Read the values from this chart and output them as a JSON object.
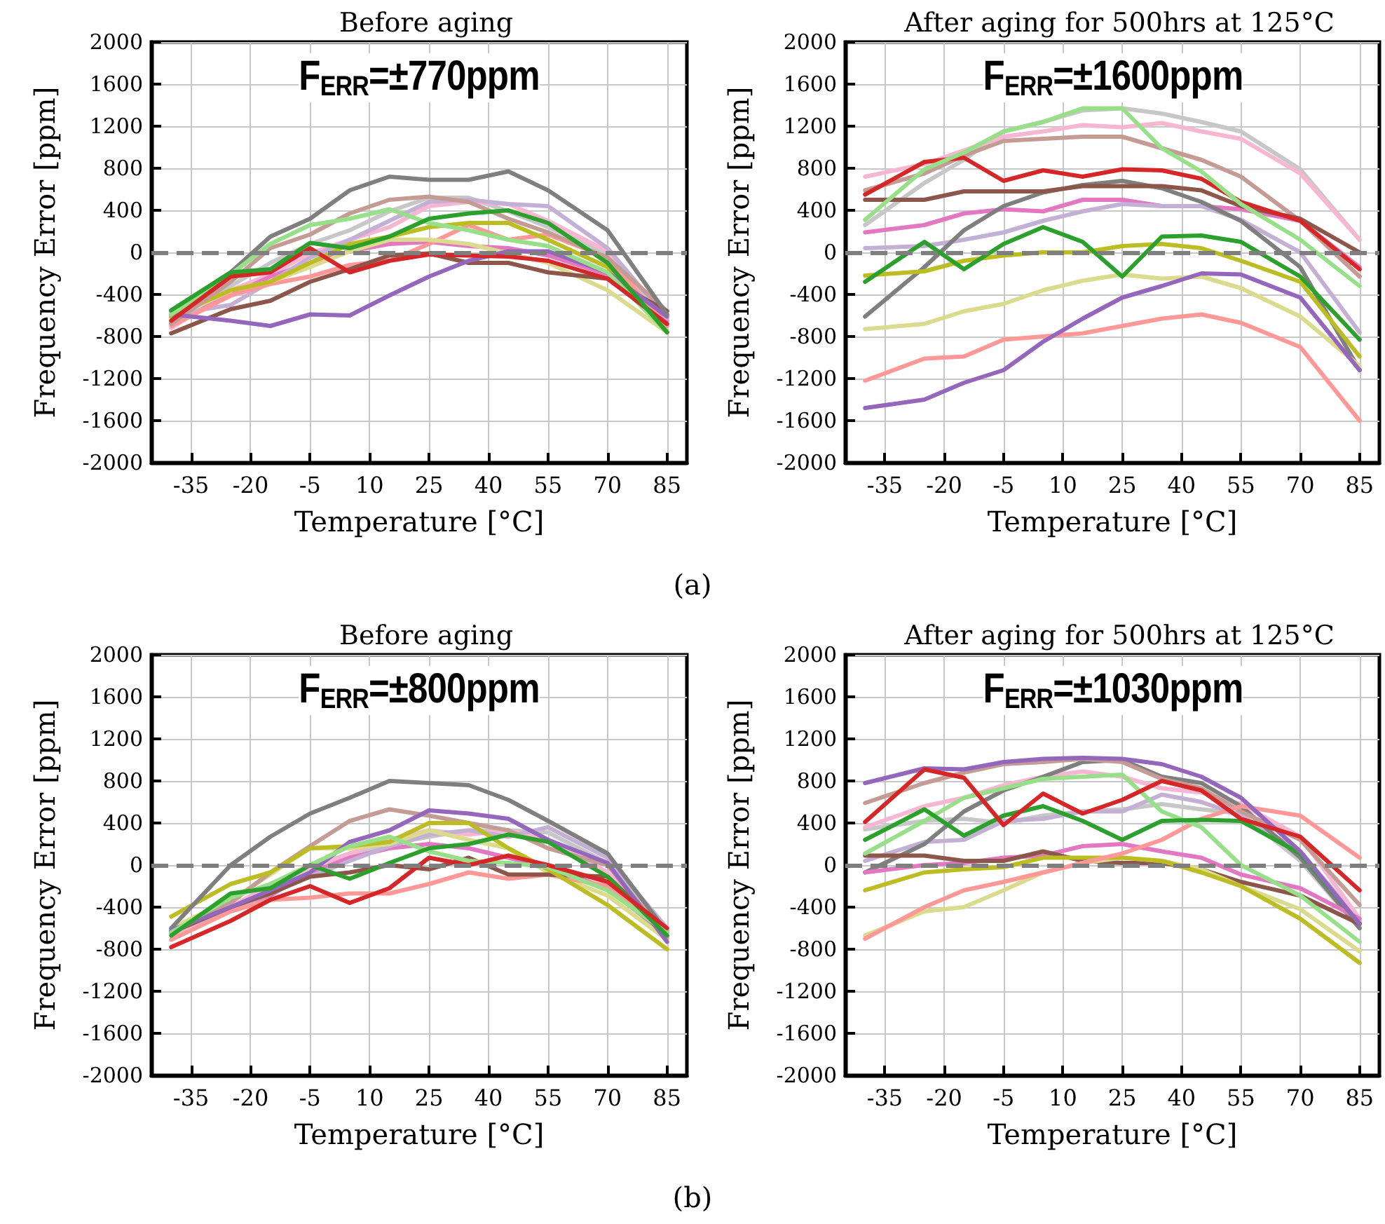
{
  "chart_data": [
    {
      "type": "line",
      "title": "Before aging",
      "xlabel": "Temperature [°C]",
      "ylabel": "Frequency Error [ppm]",
      "annotations": [
        "F$_{ERR}$=±770ppm",
        "(a)"
      ],
      "x": [
        -40,
        -25,
        -15,
        -5,
        5,
        15,
        25,
        35,
        45,
        55,
        70,
        85
      ],
      "xlim": [
        -45,
        90
      ],
      "xticks": [
        -35,
        -20,
        -5,
        10,
        25,
        40,
        55,
        70,
        85
      ],
      "ylim": [
        -2000,
        2000
      ],
      "yticks": [
        -2000,
        -1600,
        -1200,
        -800,
        -400,
        0,
        400,
        800,
        1200,
        1600,
        2000
      ],
      "grid": true,
      "marker": "none",
      "line_style": "solid",
      "ref_lines": [
        {
          "axis": "y",
          "value": 0,
          "color": "#7f7f7f",
          "line_style": "dashed"
        }
      ],
      "series": [
        {
          "color": "#c7c7c7",
          "values": [
            -610,
            -320,
            -100,
            80,
            210,
            390,
            520,
            520,
            390,
            240,
            -10,
            -680
          ]
        },
        {
          "color": "#f7b6d2",
          "values": [
            -720,
            -360,
            -210,
            -10,
            120,
            240,
            440,
            480,
            460,
            300,
            10,
            -760
          ]
        },
        {
          "color": "#e377c2",
          "values": [
            -680,
            -410,
            -230,
            -100,
            10,
            80,
            100,
            60,
            40,
            -30,
            -210,
            -650
          ]
        },
        {
          "color": "#c5b0d5",
          "values": [
            -590,
            -500,
            -280,
            -50,
            120,
            300,
            480,
            500,
            460,
            440,
            40,
            -630
          ]
        },
        {
          "color": "#ff9896",
          "values": [
            -700,
            -410,
            -300,
            -230,
            -120,
            -80,
            80,
            260,
            120,
            170,
            -50,
            -700
          ]
        },
        {
          "color": "#dbdb8d",
          "values": [
            -630,
            -360,
            -280,
            -140,
            10,
            120,
            120,
            80,
            -10,
            -100,
            -360,
            -760
          ]
        },
        {
          "color": "#bcbd22",
          "values": [
            -610,
            -360,
            -280,
            -100,
            80,
            150,
            240,
            280,
            280,
            120,
            -140,
            -760
          ]
        },
        {
          "color": "#c49c94",
          "values": [
            -680,
            -280,
            40,
            170,
            370,
            500,
            530,
            480,
            320,
            190,
            -50,
            -560
          ]
        },
        {
          "color": "#8c564b",
          "values": [
            -770,
            -540,
            -460,
            -280,
            -160,
            -30,
            -10,
            -100,
            -100,
            -190,
            -250,
            -560
          ]
        },
        {
          "color": "#9467bd",
          "values": [
            -590,
            -650,
            -700,
            -590,
            -600,
            -410,
            -230,
            -80,
            10,
            10,
            -190,
            -610
          ]
        },
        {
          "color": "#7f7f7f",
          "values": [
            -560,
            -190,
            150,
            320,
            590,
            720,
            690,
            690,
            770,
            590,
            210,
            -590
          ]
        },
        {
          "color": "#98df8a",
          "values": [
            -590,
            -210,
            80,
            260,
            320,
            410,
            280,
            210,
            120,
            60,
            -190,
            -760
          ]
        },
        {
          "color": "#d62728",
          "values": [
            -650,
            -230,
            -190,
            40,
            -190,
            -80,
            -20,
            -30,
            -40,
            -80,
            -250,
            -680
          ]
        },
        {
          "color": "#2ca02c",
          "values": [
            -550,
            -190,
            -160,
            90,
            40,
            150,
            320,
            370,
            400,
            280,
            -100,
            -760
          ]
        }
      ]
    },
    {
      "type": "line",
      "title": "After aging for 500hrs at 125°C",
      "xlabel": "Temperature [°C]",
      "ylabel": "Frequency Error [ppm]",
      "annotations": [
        "F$_{ERR}$=±1600ppm"
      ],
      "x": [
        -40,
        -25,
        -15,
        -5,
        5,
        15,
        25,
        35,
        45,
        55,
        70,
        85
      ],
      "xlim": [
        -45,
        90
      ],
      "xticks": [
        -35,
        -20,
        -5,
        10,
        25,
        40,
        55,
        70,
        85
      ],
      "ylim": [
        -2000,
        2000
      ],
      "yticks": [
        -2000,
        -1600,
        -1200,
        -800,
        -400,
        0,
        400,
        800,
        1200,
        1600,
        2000
      ],
      "grid": true,
      "marker": "none",
      "line_style": "solid",
      "ref_lines": [
        {
          "axis": "y",
          "value": 0,
          "color": "#7f7f7f",
          "line_style": "dashed"
        }
      ],
      "series": [
        {
          "color": "#c7c7c7",
          "values": [
            260,
            660,
            880,
            1150,
            1240,
            1350,
            1370,
            1320,
            1240,
            1150,
            790,
            120
          ]
        },
        {
          "color": "#f7b6d2",
          "values": [
            720,
            840,
            970,
            1100,
            1150,
            1210,
            1190,
            1230,
            1150,
            1080,
            750,
            120
          ]
        },
        {
          "color": "#c49c94",
          "values": [
            590,
            750,
            920,
            1060,
            1080,
            1100,
            1100,
            990,
            880,
            720,
            300,
            -230
          ]
        },
        {
          "color": "#e377c2",
          "values": [
            190,
            260,
            370,
            410,
            390,
            500,
            500,
            440,
            440,
            410,
            300,
            -140
          ]
        },
        {
          "color": "#c5b0d5",
          "values": [
            40,
            60,
            120,
            190,
            300,
            390,
            460,
            440,
            440,
            310,
            0,
            -760
          ]
        },
        {
          "color": "#7f7f7f",
          "values": [
            -610,
            -140,
            210,
            440,
            570,
            640,
            680,
            610,
            480,
            300,
            -140,
            -1120
          ]
        },
        {
          "color": "#bcbd22",
          "values": [
            -220,
            -180,
            -80,
            -30,
            0,
            0,
            60,
            80,
            40,
            -80,
            -280,
            -990
          ]
        },
        {
          "color": "#dbdb8d",
          "values": [
            -730,
            -680,
            -560,
            -490,
            -360,
            -270,
            -210,
            -250,
            -230,
            -340,
            -610,
            -1080
          ]
        },
        {
          "color": "#ff9896",
          "values": [
            -1220,
            -1010,
            -990,
            -830,
            -800,
            -770,
            -700,
            -630,
            -590,
            -670,
            -900,
            -1600
          ]
        },
        {
          "color": "#9467bd",
          "values": [
            -1480,
            -1400,
            -1240,
            -1120,
            -850,
            -630,
            -430,
            -320,
            -200,
            -210,
            -430,
            -1120
          ]
        },
        {
          "color": "#8c564b",
          "values": [
            500,
            500,
            580,
            580,
            580,
            630,
            630,
            630,
            590,
            440,
            320,
            0
          ]
        },
        {
          "color": "#d62728",
          "values": [
            550,
            860,
            900,
            680,
            780,
            720,
            790,
            780,
            700,
            480,
            300,
            -160
          ]
        },
        {
          "color": "#2ca02c",
          "values": [
            -280,
            100,
            -160,
            80,
            240,
            100,
            -230,
            150,
            160,
            100,
            -230,
            -830
          ]
        },
        {
          "color": "#98df8a",
          "values": [
            310,
            790,
            950,
            1150,
            1240,
            1370,
            1370,
            990,
            770,
            460,
            120,
            -320
          ]
        }
      ]
    },
    {
      "type": "line",
      "title": "Before aging",
      "xlabel": "Temperature [°C]",
      "ylabel": "Frequency Error [ppm]",
      "annotations": [
        "F$_{ERR}$=±800ppm",
        "(b)"
      ],
      "x": [
        -40,
        -25,
        -15,
        -5,
        5,
        15,
        25,
        35,
        45,
        55,
        70,
        85
      ],
      "xlim": [
        -45,
        90
      ],
      "xticks": [
        -35,
        -20,
        -5,
        10,
        25,
        40,
        55,
        70,
        85
      ],
      "ylim": [
        -2000,
        2000
      ],
      "yticks": [
        -2000,
        -1600,
        -1200,
        -800,
        -400,
        0,
        400,
        800,
        1200,
        1600,
        2000
      ],
      "grid": true,
      "marker": "none",
      "line_style": "solid",
      "ref_lines": [
        {
          "axis": "y",
          "value": 0,
          "color": "#7f7f7f",
          "line_style": "dashed"
        }
      ],
      "series": [
        {
          "color": "#c7c7c7",
          "values": [
            -620,
            -400,
            -200,
            -20,
            110,
            200,
            270,
            330,
            330,
            310,
            20,
            -640
          ]
        },
        {
          "color": "#f7b6d2",
          "values": [
            -670,
            -400,
            -180,
            -20,
            110,
            240,
            330,
            290,
            330,
            240,
            -70,
            -670
          ]
        },
        {
          "color": "#e377c2",
          "values": [
            -640,
            -400,
            -290,
            -70,
            70,
            160,
            200,
            160,
            70,
            -20,
            -220,
            -670
          ]
        },
        {
          "color": "#c5b0d5",
          "values": [
            -640,
            -420,
            -270,
            -110,
            40,
            180,
            290,
            330,
            270,
            360,
            70,
            -600
          ]
        },
        {
          "color": "#dbdb8d",
          "values": [
            -600,
            -330,
            -90,
            160,
            160,
            200,
            330,
            240,
            160,
            -70,
            -290,
            -710
          ]
        },
        {
          "color": "#ff9896",
          "values": [
            -710,
            -440,
            -330,
            -310,
            -270,
            -270,
            -180,
            -70,
            -130,
            -90,
            -200,
            -620
          ]
        },
        {
          "color": "#8c564b",
          "values": [
            -640,
            -400,
            -270,
            -110,
            -70,
            0,
            -40,
            70,
            -90,
            -90,
            -110,
            -640
          ]
        },
        {
          "color": "#c49c94",
          "values": [
            -640,
            -360,
            -70,
            180,
            420,
            530,
            470,
            400,
            330,
            160,
            0,
            -690
          ]
        },
        {
          "color": "#bcbd22",
          "values": [
            -490,
            -180,
            -70,
            160,
            180,
            220,
            400,
            400,
            160,
            -40,
            -380,
            -800
          ]
        },
        {
          "color": "#7f7f7f",
          "values": [
            -600,
            0,
            270,
            490,
            640,
            800,
            780,
            760,
            620,
            420,
            110,
            -640
          ]
        },
        {
          "color": "#9467bd",
          "values": [
            -620,
            -400,
            -240,
            -70,
            220,
            330,
            520,
            490,
            440,
            240,
            20,
            -730
          ]
        },
        {
          "color": "#98df8a",
          "values": [
            -640,
            -310,
            -180,
            0,
            180,
            270,
            130,
            40,
            20,
            -20,
            -240,
            -640
          ]
        },
        {
          "color": "#2ca02c",
          "values": [
            -670,
            -270,
            -220,
            0,
            -130,
            20,
            160,
            200,
            290,
            220,
            -110,
            -670
          ]
        },
        {
          "color": "#d62728",
          "values": [
            -780,
            -530,
            -330,
            -200,
            -360,
            -220,
            70,
            0,
            90,
            0,
            -160,
            -600
          ]
        }
      ]
    },
    {
      "type": "line",
      "title": "After aging for 500hrs at 125°C",
      "xlabel": "Temperature [°C]",
      "ylabel": "Frequency Error [ppm]",
      "annotations": [
        "F$_{ERR}$=±1030ppm"
      ],
      "x": [
        -40,
        -25,
        -15,
        -5,
        5,
        15,
        25,
        35,
        45,
        55,
        70,
        85
      ],
      "xlim": [
        -45,
        90
      ],
      "xticks": [
        -35,
        -20,
        -5,
        10,
        25,
        40,
        55,
        70,
        85
      ],
      "ylim": [
        -2000,
        2000
      ],
      "yticks": [
        -2000,
        -1600,
        -1200,
        -800,
        -400,
        0,
        400,
        800,
        1200,
        1600,
        2000
      ],
      "grid": true,
      "marker": "none",
      "line_style": "solid",
      "ref_lines": [
        {
          "axis": "y",
          "value": 0,
          "color": "#7f7f7f",
          "line_style": "dashed"
        }
      ],
      "series": [
        {
          "color": "#c7c7c7",
          "values": [
            340,
            420,
            440,
            400,
            470,
            510,
            530,
            580,
            530,
            490,
            40,
            -600
          ]
        },
        {
          "color": "#c5b0d5",
          "values": [
            40,
            220,
            240,
            420,
            440,
            510,
            510,
            670,
            600,
            470,
            130,
            -530
          ]
        },
        {
          "color": "#f7b6d2",
          "values": [
            360,
            560,
            640,
            760,
            840,
            890,
            840,
            730,
            690,
            580,
            270,
            -510
          ]
        },
        {
          "color": "#7f7f7f",
          "values": [
            -70,
            200,
            510,
            710,
            840,
            980,
            1000,
            840,
            780,
            560,
            70,
            -600
          ]
        },
        {
          "color": "#c49c94",
          "values": [
            590,
            780,
            880,
            960,
            980,
            1010,
            980,
            820,
            730,
            510,
            240,
            -380
          ]
        },
        {
          "color": "#e377c2",
          "values": [
            -70,
            0,
            20,
            70,
            90,
            180,
            200,
            130,
            70,
            -90,
            -220,
            -510
          ]
        },
        {
          "color": "#8c564b",
          "values": [
            90,
            90,
            40,
            40,
            130,
            40,
            20,
            20,
            -40,
            -160,
            -290,
            -560
          ]
        },
        {
          "color": "#dbdb8d",
          "values": [
            -670,
            -440,
            -400,
            -240,
            -70,
            20,
            70,
            40,
            -40,
            -200,
            -420,
            -820
          ]
        },
        {
          "color": "#bcbd22",
          "values": [
            -240,
            -70,
            -40,
            -20,
            70,
            70,
            70,
            40,
            -70,
            -200,
            -510,
            -930
          ]
        },
        {
          "color": "#ff9896",
          "values": [
            -700,
            -400,
            -240,
            -160,
            -70,
            20,
            110,
            240,
            440,
            560,
            470,
            70
          ]
        },
        {
          "color": "#98df8a",
          "values": [
            110,
            420,
            640,
            730,
            820,
            840,
            860,
            510,
            360,
            0,
            -290,
            -730
          ]
        },
        {
          "color": "#2ca02c",
          "values": [
            240,
            530,
            280,
            470,
            560,
            420,
            240,
            420,
            430,
            420,
            110,
            -560
          ]
        },
        {
          "color": "#9467bd",
          "values": [
            780,
            920,
            910,
            980,
            1010,
            1020,
            1010,
            960,
            840,
            640,
            130,
            -560
          ]
        },
        {
          "color": "#d62728",
          "values": [
            410,
            910,
            830,
            380,
            680,
            490,
            620,
            800,
            710,
            440,
            270,
            -240
          ]
        }
      ]
    }
  ]
}
